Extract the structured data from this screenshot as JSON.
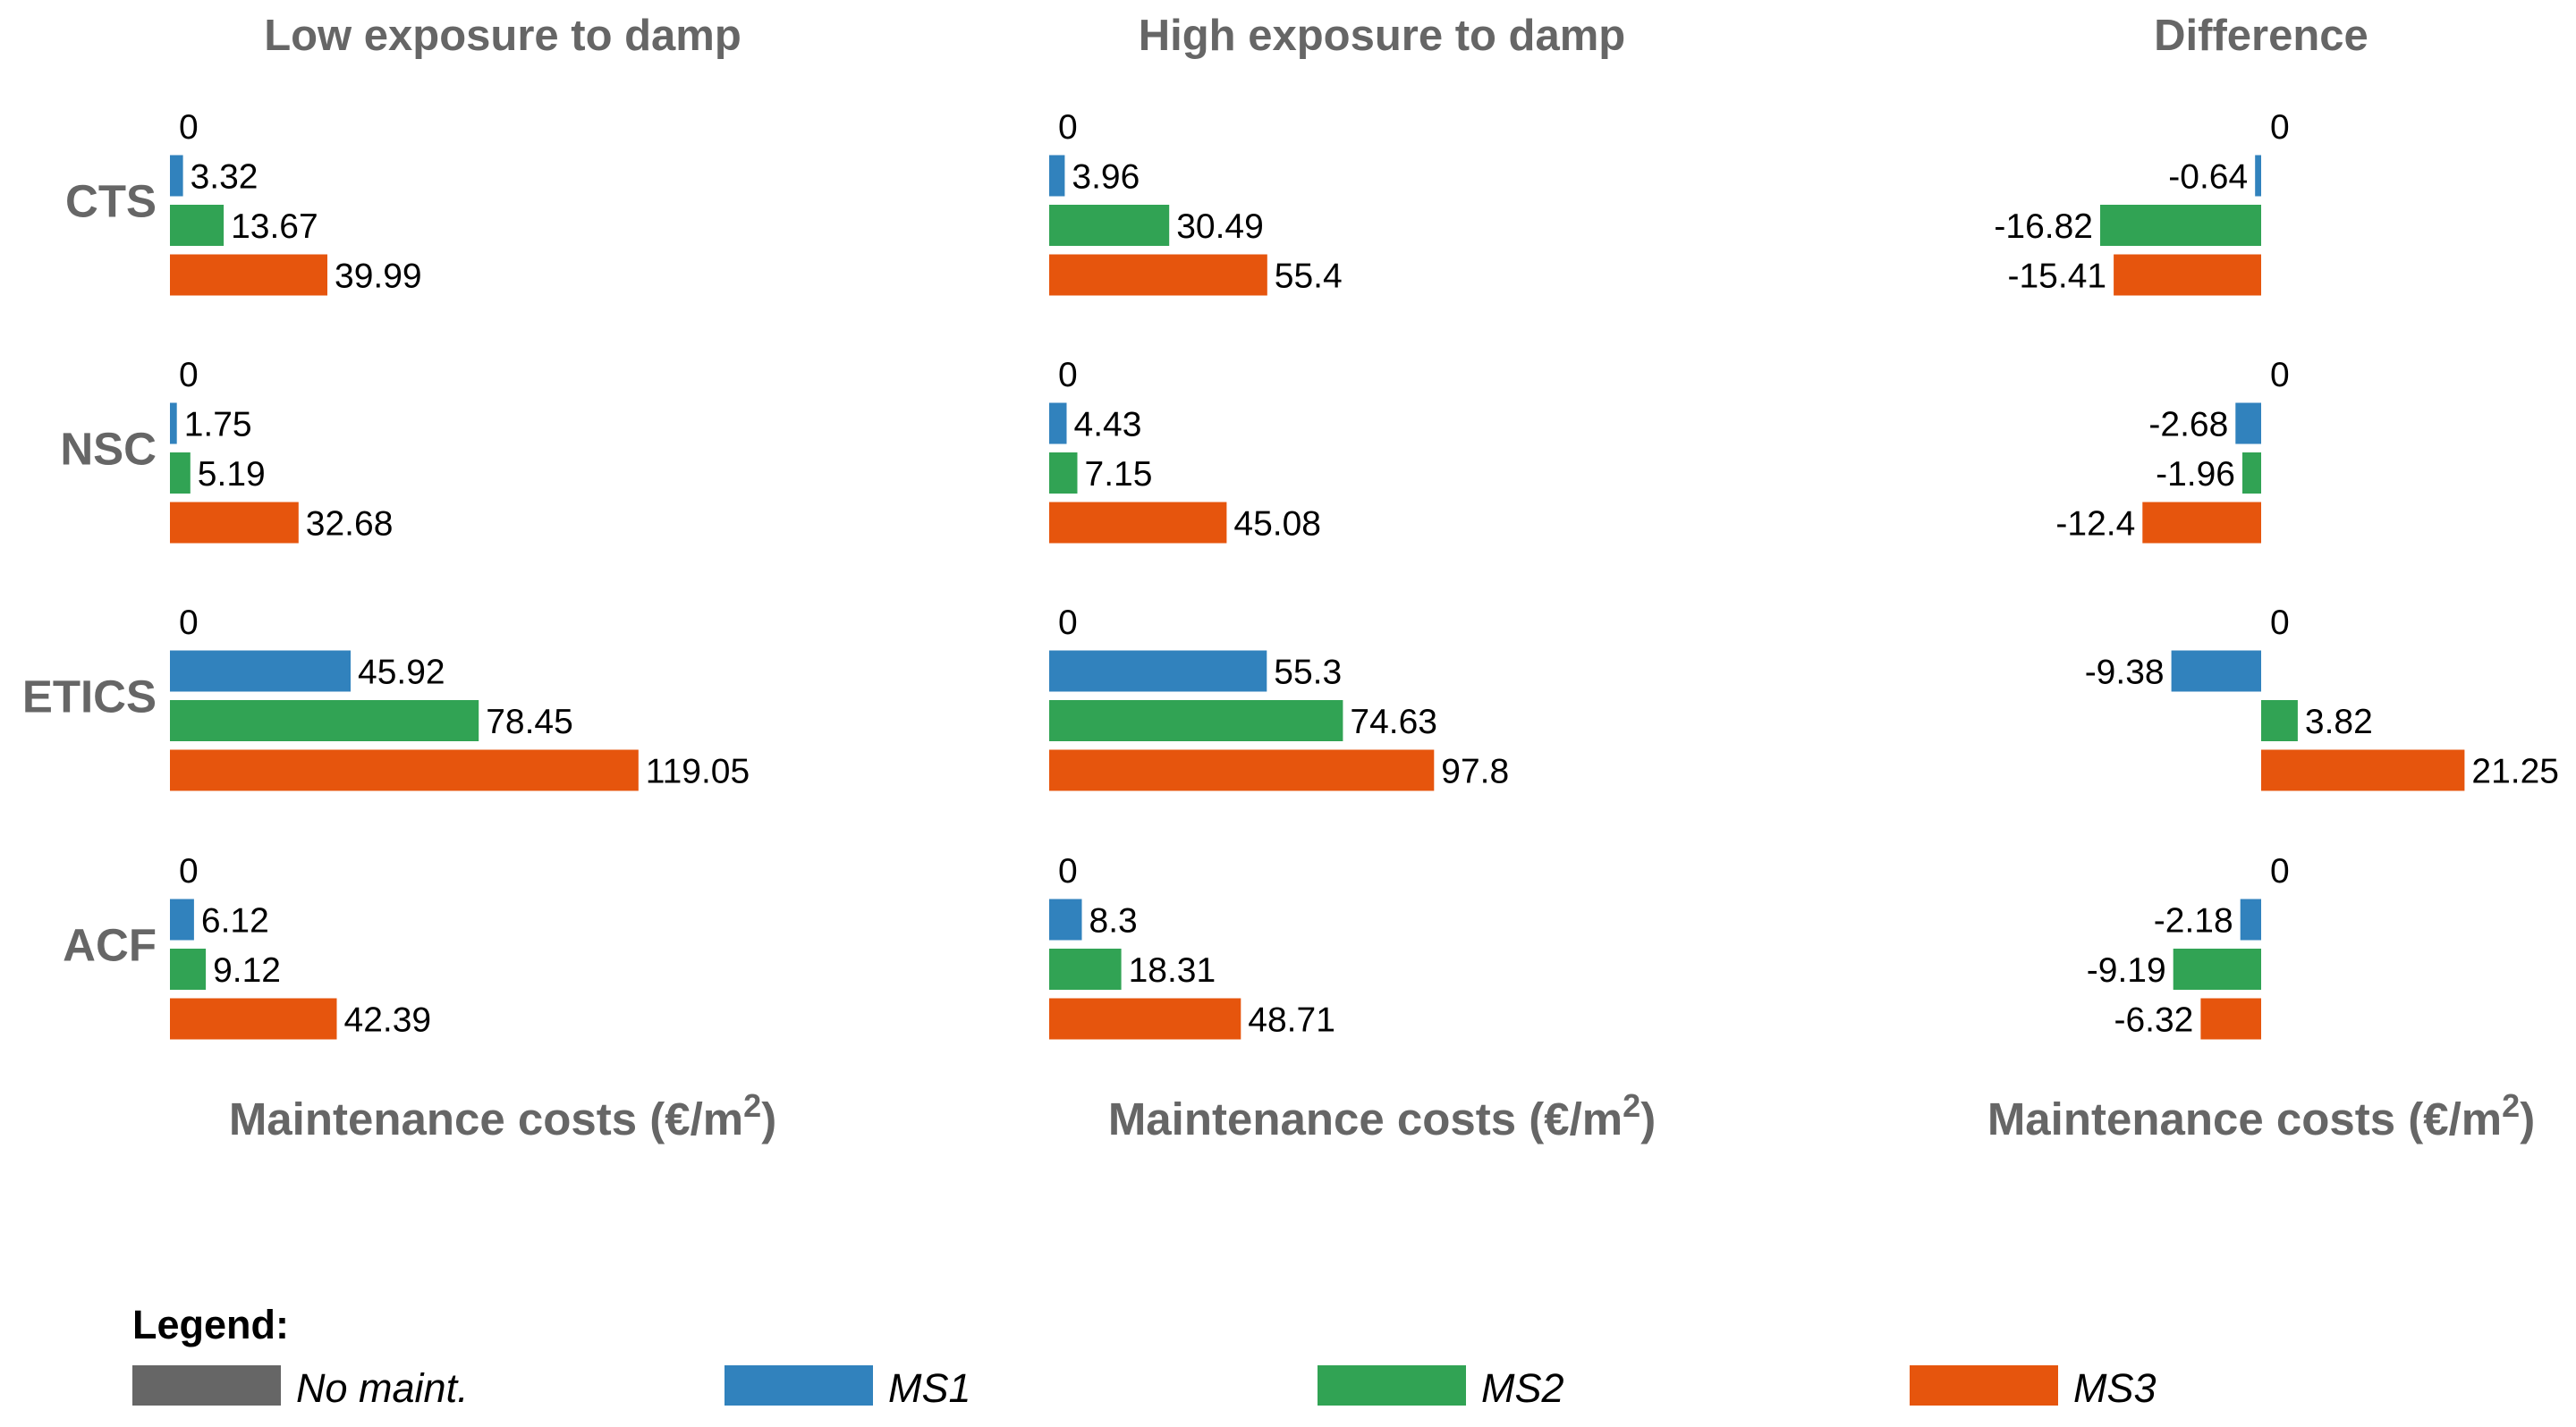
{
  "colors": {
    "no_maint": "#666666",
    "ms1": "#3182bd",
    "ms2": "#31a354",
    "ms3": "#e6550d"
  },
  "chart_data": [
    {
      "type": "bar",
      "orientation": "horizontal",
      "title": "Low exposure to damp",
      "xlabel": "Maintenance costs (€/m",
      "xlabel_sup": "2",
      "xlabel_end": ")",
      "xlim": [
        0,
        119.05
      ],
      "categories": [
        "CTS",
        "NSC",
        "ETICS",
        "ACF"
      ],
      "series": [
        {
          "name": "No maint.",
          "values": [
            0,
            0,
            0,
            0
          ],
          "labels": [
            "0",
            "0",
            "0",
            "0"
          ]
        },
        {
          "name": "MS1",
          "values": [
            3.32,
            1.75,
            45.92,
            6.12
          ],
          "labels": [
            "3.32",
            "1.75",
            "45.92",
            "6.12"
          ]
        },
        {
          "name": "MS2",
          "values": [
            13.67,
            5.19,
            78.45,
            9.12
          ],
          "labels": [
            "13.67",
            "5.19",
            "78.45",
            "9.12"
          ]
        },
        {
          "name": "MS3",
          "values": [
            39.99,
            32.68,
            119.05,
            42.39
          ],
          "labels": [
            "39.99",
            "32.68",
            "119.05",
            "42.39"
          ]
        }
      ]
    },
    {
      "type": "bar",
      "orientation": "horizontal",
      "title": "High exposure to damp",
      "xlabel": "Maintenance costs (€/m",
      "xlabel_sup": "2",
      "xlabel_end": ")",
      "xlim": [
        0,
        119.05
      ],
      "categories": [
        "CTS",
        "NSC",
        "ETICS",
        "ACF"
      ],
      "series": [
        {
          "name": "No maint.",
          "values": [
            0,
            0,
            0,
            0
          ],
          "labels": [
            "0",
            "0",
            "0",
            "0"
          ]
        },
        {
          "name": "MS1",
          "values": [
            3.96,
            4.43,
            55.3,
            8.3
          ],
          "labels": [
            "3.96",
            "4.43",
            "55.3",
            "8.3"
          ]
        },
        {
          "name": "MS2",
          "values": [
            30.49,
            7.15,
            74.63,
            18.31
          ],
          "labels": [
            "30.49",
            "7.15",
            "74.63",
            "18.31"
          ]
        },
        {
          "name": "MS3",
          "values": [
            55.4,
            45.08,
            97.8,
            48.71
          ],
          "labels": [
            "55.4",
            "45.08",
            "97.8",
            "48.71"
          ]
        }
      ]
    },
    {
      "type": "bar",
      "orientation": "horizontal",
      "title": "Difference",
      "xlabel": "Maintenance costs (€/m",
      "xlabel_sup": "2",
      "xlabel_end": ")",
      "xlim": [
        -16.82,
        21.25
      ],
      "categories": [
        "CTS",
        "NSC",
        "ETICS",
        "ACF"
      ],
      "series": [
        {
          "name": "No maint.",
          "values": [
            0,
            0,
            0,
            0
          ],
          "labels": [
            "0",
            "0",
            "0",
            "0"
          ]
        },
        {
          "name": "MS1",
          "values": [
            -0.64,
            -2.68,
            -9.38,
            -2.18
          ],
          "labels": [
            "-0.64",
            "-2.68",
            "-9.38",
            "-2.18"
          ]
        },
        {
          "name": "MS2",
          "values": [
            -16.82,
            -1.96,
            3.82,
            -9.19
          ],
          "labels": [
            "-16.82",
            "-1.96",
            "3.82",
            "-9.19"
          ]
        },
        {
          "name": "MS3",
          "values": [
            -15.41,
            -12.4,
            21.25,
            -6.32
          ],
          "labels": [
            "-15.41",
            "-12.4",
            "21.25",
            "-6.32"
          ]
        }
      ]
    }
  ],
  "legend": {
    "title": "Legend:",
    "items": [
      {
        "label": "No maint.",
        "color_key": "no_maint"
      },
      {
        "label": "MS1",
        "color_key": "ms1"
      },
      {
        "label": "MS2",
        "color_key": "ms2"
      },
      {
        "label": "MS3",
        "color_key": "ms3"
      }
    ]
  }
}
